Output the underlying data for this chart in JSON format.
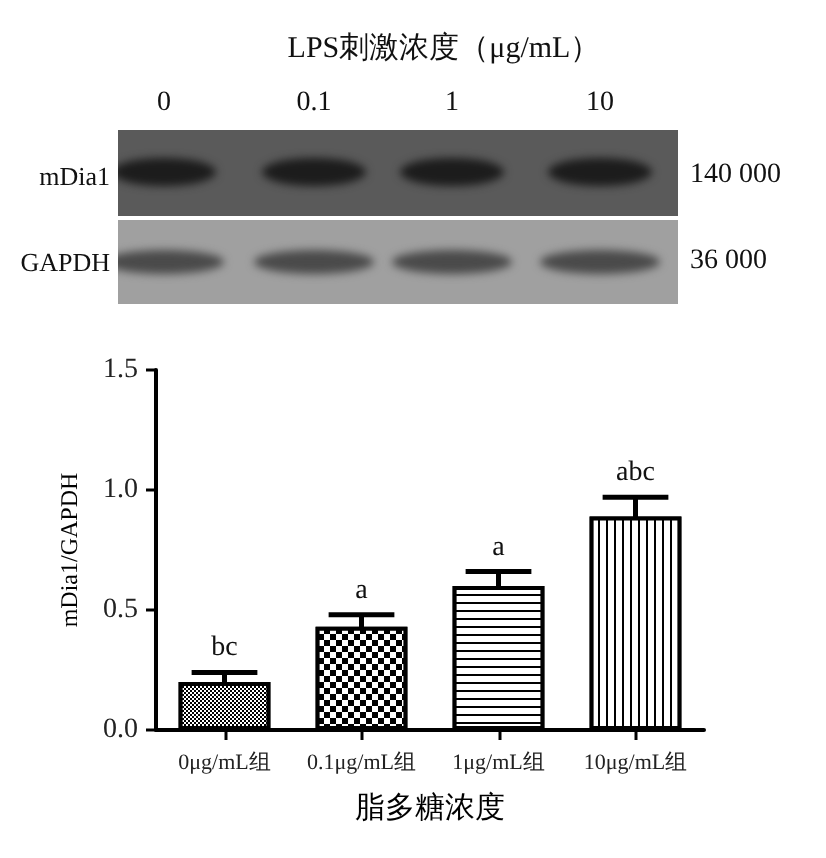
{
  "chart_data": {
    "type": "bar",
    "categories": [
      "0μg/mL组",
      "0.1μg/mL组",
      "1μg/mL组",
      "10μg/mL组"
    ],
    "values": [
      0.2,
      0.43,
      0.6,
      0.89
    ],
    "errors": [
      0.04,
      0.05,
      0.06,
      0.08
    ],
    "color": "#000000",
    "xlabel": "脂多糖浓度",
    "ylabel": "mDia1/GAPDH",
    "ylim": [
      0,
      1.5
    ],
    "yticks": [
      {
        "value": 0,
        "label": "0.0"
      },
      {
        "value": 0.5,
        "label": "0.5"
      },
      {
        "value": 1,
        "label": "1.0"
      },
      {
        "value": 1.5,
        "label": "1.5"
      }
    ],
    "annotations": [
      "LPS刺激浓度（μg/mL）",
      "0",
      "0.1",
      "1",
      "10",
      "mDia1",
      "GAPDH",
      "140 000",
      "36 000",
      {
        "text": "bc",
        "x": "0μg/mL组",
        "y": 0.24
      },
      {
        "text": "a",
        "x": "0.1μg/mL组",
        "y": 0.48
      },
      {
        "text": "a",
        "x": "1μg/mL组",
        "y": 0.66
      },
      {
        "text": "abc",
        "x": "10μg/mL组",
        "y": 0.97
      }
    ]
  }
}
